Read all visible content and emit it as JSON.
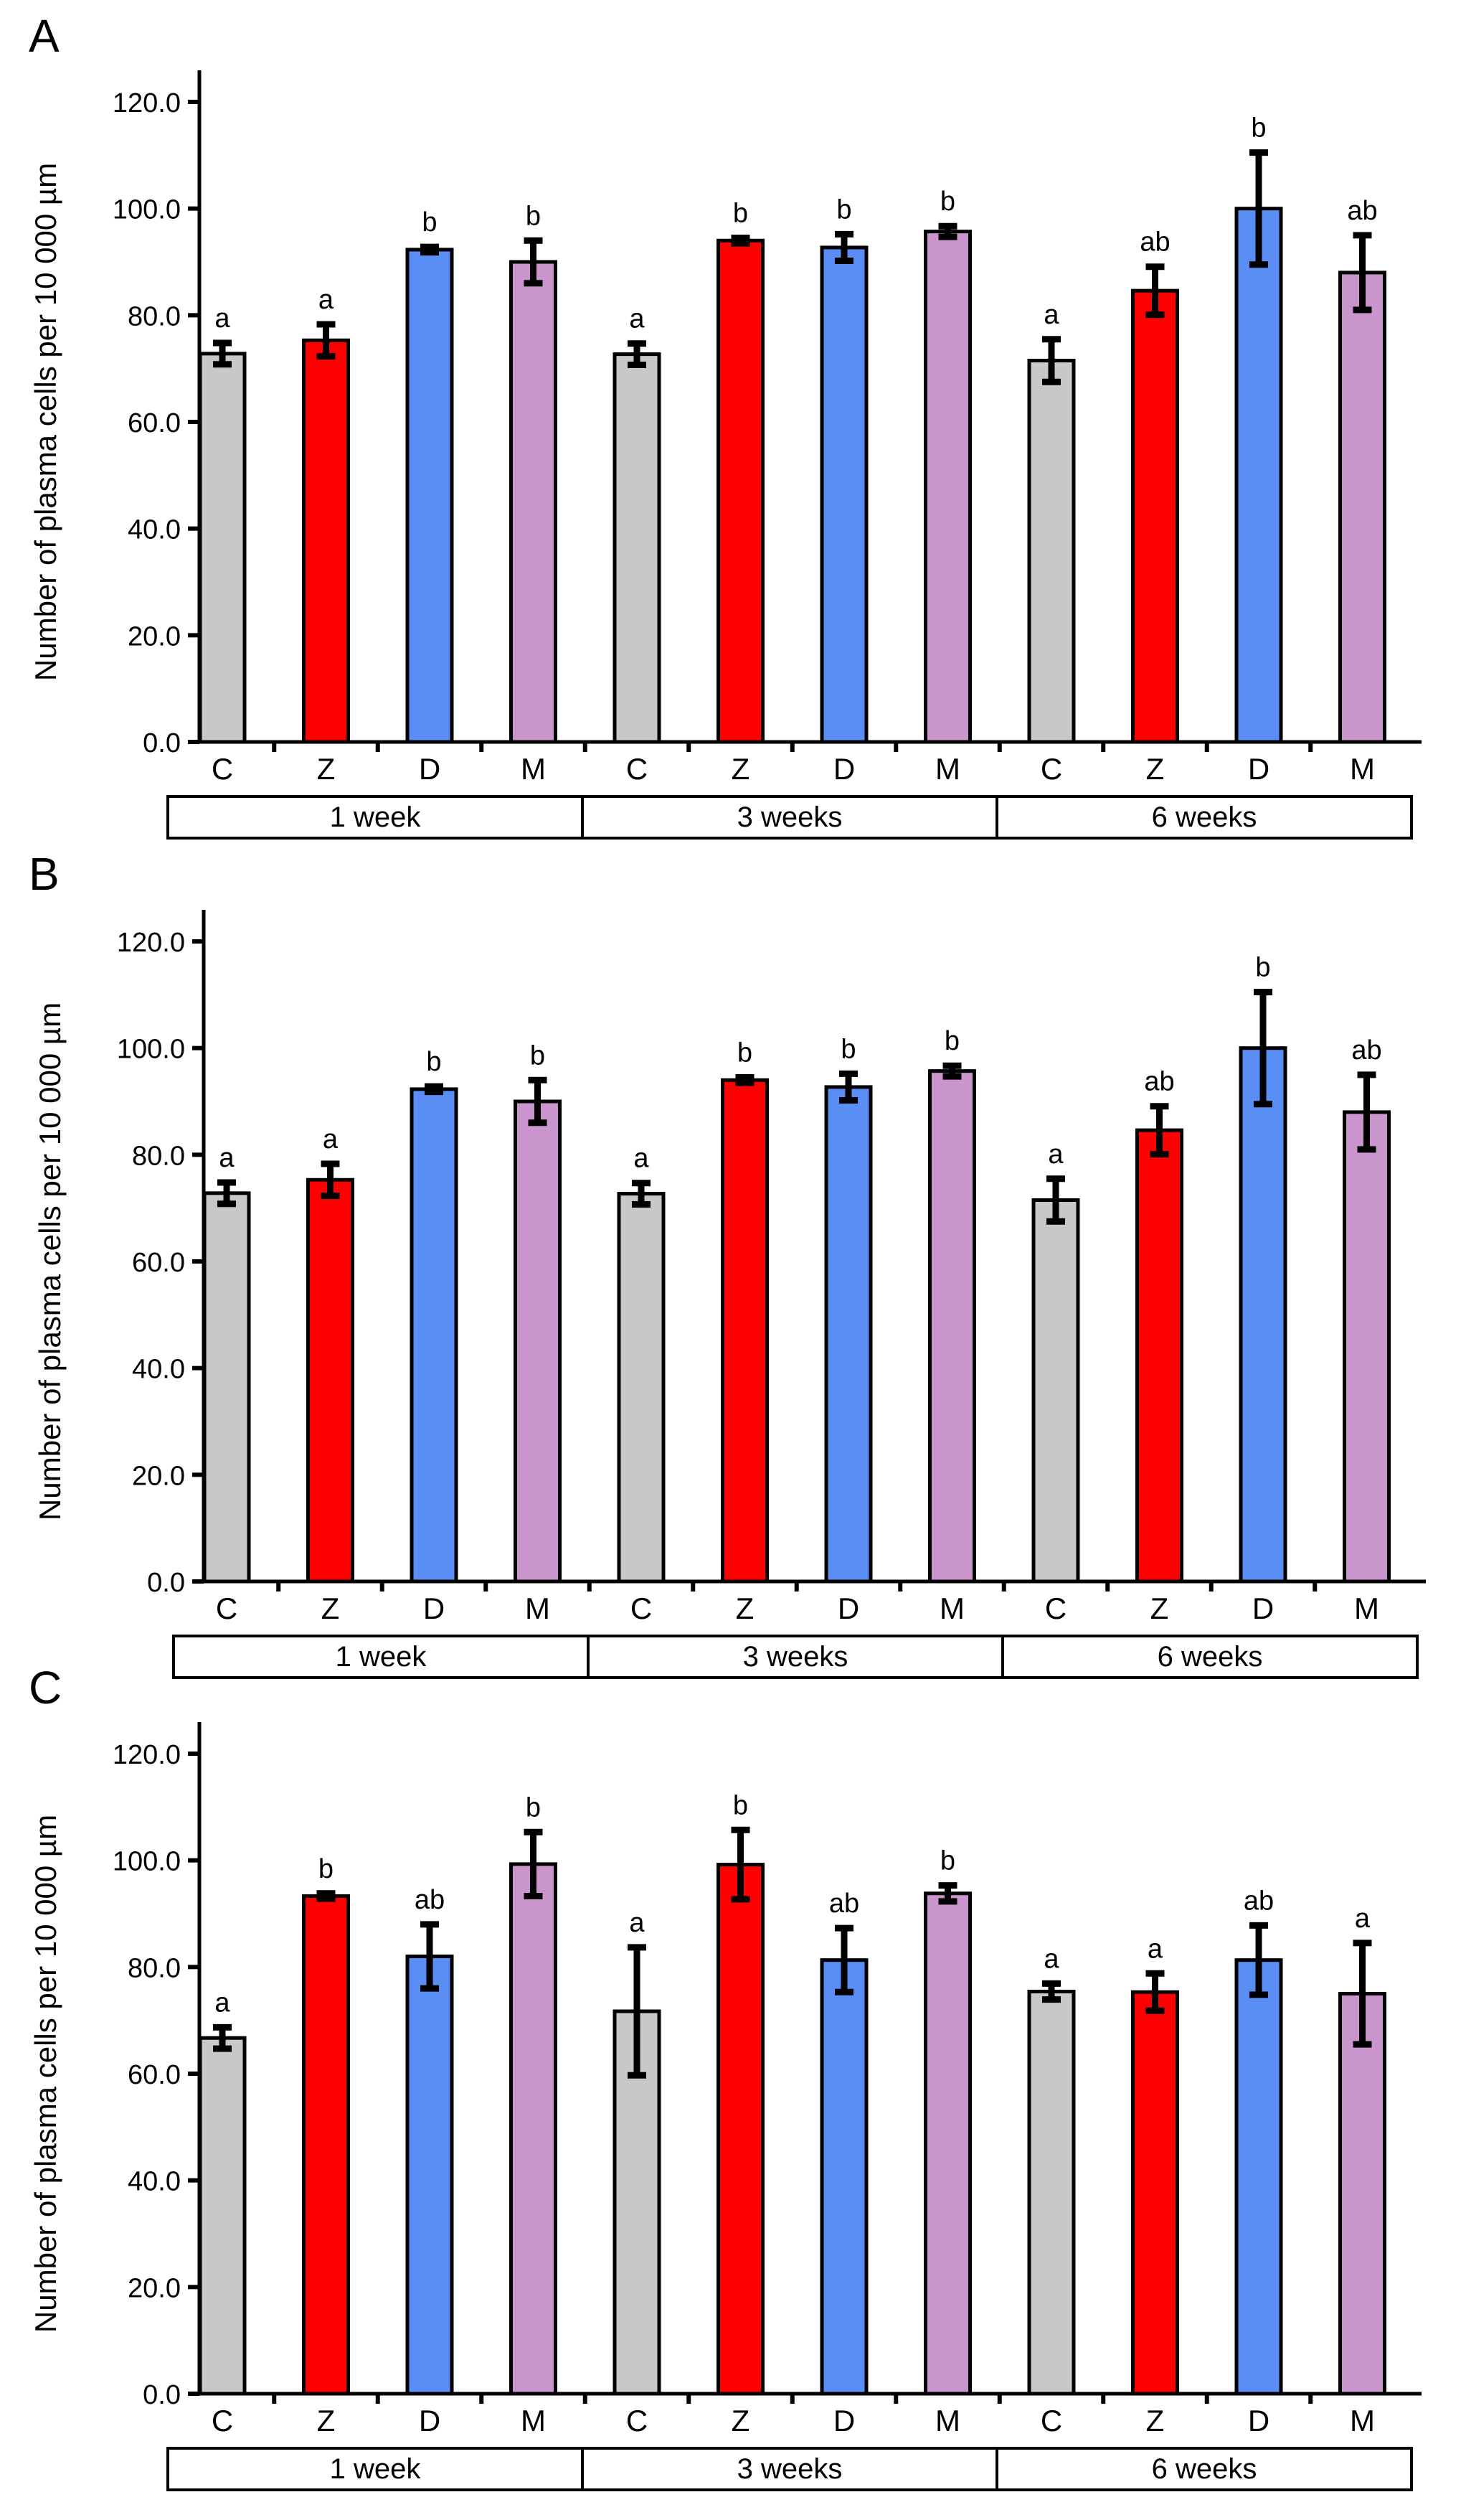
{
  "chart_data": [
    {
      "panel": "A",
      "type": "bar",
      "ylabel": "Number of plasma cells per 10 000 µm",
      "ylim": [
        0,
        120
      ],
      "yticks": [
        "0.0",
        "20.0",
        "40.0",
        "60.0",
        "80.0",
        "100.0",
        "120.0"
      ],
      "categories": [
        "C",
        "Z",
        "D",
        "M",
        "C",
        "Z",
        "D",
        "M",
        "C",
        "Z",
        "D",
        "M"
      ],
      "groups": [
        "1 week",
        "3 weeks",
        "6 weeks"
      ],
      "values": [
        72.8,
        75.3,
        92.3,
        90.0,
        72.7,
        94.0,
        92.7,
        95.7,
        71.5,
        84.6,
        100.0,
        88.0
      ],
      "errors": [
        2.0,
        3.0,
        0.5,
        4.0,
        2.0,
        0.5,
        2.5,
        1.0,
        4.0,
        4.5,
        10.5,
        7.0
      ],
      "letters": [
        "a",
        "a",
        "b",
        "b",
        "a",
        "b",
        "b",
        "b",
        "a",
        "ab",
        "b",
        "ab"
      ],
      "colors": [
        "#c8c8c8",
        "#ff0000",
        "#5b8ef5",
        "#c995cc",
        "#c8c8c8",
        "#ff0000",
        "#5b8ef5",
        "#c995cc",
        "#c8c8c8",
        "#ff0000",
        "#5b8ef5",
        "#c995cc"
      ]
    },
    {
      "panel": "B",
      "type": "bar",
      "ylabel": "Number of plasma cells per 10 000 µm",
      "ylim": [
        0,
        120
      ],
      "yticks": [
        "0.0",
        "20.0",
        "40.0",
        "60.0",
        "80.0",
        "100.0",
        "120.0"
      ],
      "categories": [
        "C",
        "Z",
        "D",
        "M",
        "C",
        "Z",
        "D",
        "M",
        "C",
        "Z",
        "D",
        "M"
      ],
      "groups": [
        "1 week",
        "3 weeks",
        "6 weeks"
      ],
      "values": [
        72.8,
        75.3,
        92.3,
        90.0,
        72.7,
        94.0,
        92.7,
        95.7,
        71.5,
        84.6,
        100.0,
        88.0
      ],
      "errors": [
        2.0,
        3.0,
        0.5,
        4.0,
        2.0,
        0.5,
        2.5,
        1.0,
        4.0,
        4.5,
        10.5,
        7.0
      ],
      "letters": [
        "a",
        "a",
        "b",
        "b",
        "a",
        "b",
        "b",
        "b",
        "a",
        "ab",
        "b",
        "ab"
      ],
      "colors": [
        "#c8c8c8",
        "#ff0000",
        "#5b8ef5",
        "#c995cc",
        "#c8c8c8",
        "#ff0000",
        "#5b8ef5",
        "#c995cc",
        "#c8c8c8",
        "#ff0000",
        "#5b8ef5",
        "#c995cc"
      ]
    },
    {
      "panel": "C",
      "type": "bar",
      "ylabel": "Number of plasma cells per 10 000 µm",
      "ylim": [
        0,
        120
      ],
      "yticks": [
        "0.0",
        "20.0",
        "40.0",
        "60.0",
        "80.0",
        "100.0",
        "120.0"
      ],
      "categories": [
        "C",
        "Z",
        "D",
        "M",
        "C",
        "Z",
        "D",
        "M",
        "C",
        "Z",
        "D",
        "M"
      ],
      "groups": [
        "1 week",
        "3 weeks",
        "6 weeks"
      ],
      "values": [
        66.7,
        93.3,
        82.0,
        99.3,
        71.7,
        99.2,
        81.3,
        93.8,
        75.4,
        75.3,
        81.3,
        75.0
      ],
      "errors": [
        2.0,
        0.5,
        6.0,
        6.0,
        12.0,
        6.5,
        6.0,
        1.5,
        1.5,
        3.5,
        6.5,
        9.5
      ],
      "letters": [
        "a",
        "b",
        "ab",
        "b",
        "a",
        "b",
        "ab",
        "b",
        "a",
        "a",
        "ab",
        "a"
      ],
      "colors": [
        "#c8c8c8",
        "#ff0000",
        "#5b8ef5",
        "#c995cc",
        "#c8c8c8",
        "#ff0000",
        "#5b8ef5",
        "#c995cc",
        "#c8c8c8",
        "#ff0000",
        "#5b8ef5",
        "#c995cc"
      ]
    }
  ]
}
